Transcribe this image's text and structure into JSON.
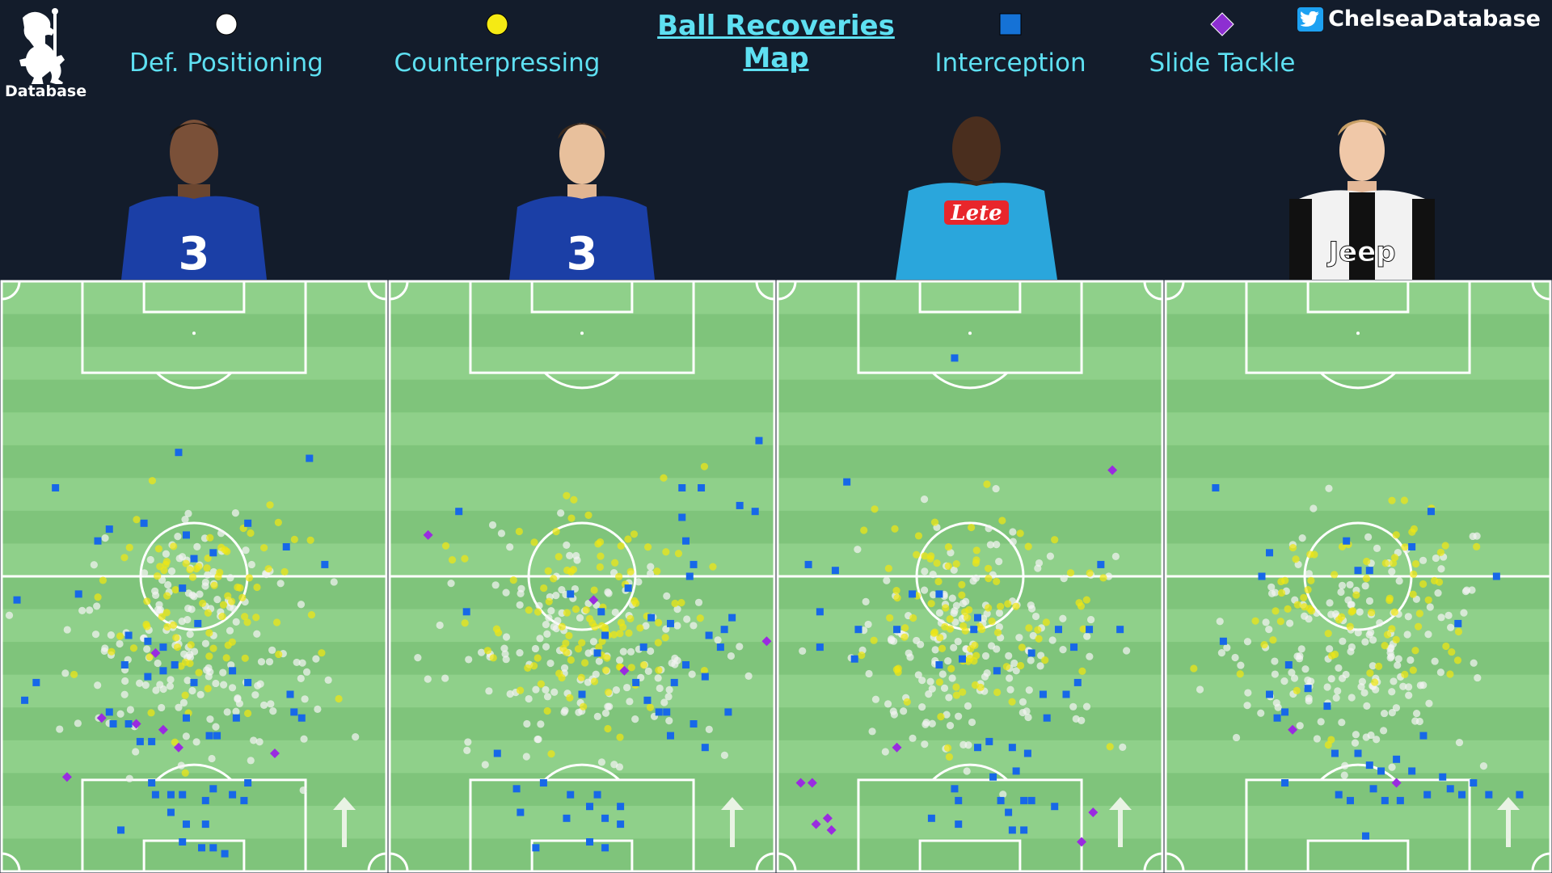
{
  "title": "Ball Recoveries Map",
  "handle": "ChelseaDatabase",
  "logo_text": "Database",
  "colors": {
    "background": "#131c2b",
    "accent": "#5ee0f2",
    "pitch_light": "#8fd08a",
    "pitch_dark": "#7fc47b",
    "def_positioning": "#f2f2f2",
    "counterpressing": "#f0e614",
    "interception": "#1768e8",
    "slide_tackle": "#9a2be0"
  },
  "legend": [
    {
      "key": "def_positioning",
      "label": "Def. Positioning",
      "marker": "circle",
      "color": "#ffffff"
    },
    {
      "key": "counterpressing",
      "label": "Counterpressing",
      "marker": "circle",
      "color": "#f5ea14"
    },
    {
      "key": "interception",
      "label": "Interception",
      "marker": "square",
      "color": "#1572d6"
    },
    {
      "key": "slide_tackle",
      "label": "Slide Tackle",
      "marker": "diamond",
      "color": "#8d2fd1"
    }
  ],
  "players": [
    {
      "kit": "chelsea",
      "jersey_color": "#1b3fa6",
      "shirt_text": "3"
    },
    {
      "kit": "chelsea",
      "jersey_color": "#1b3fa6",
      "shirt_text": "3"
    },
    {
      "kit": "napoli",
      "jersey_color": "#2aa6dc",
      "shirt_text": "Lete"
    },
    {
      "kit": "juventus",
      "jersey_color": "#f2f2f2",
      "shirt_text": "Jeep"
    }
  ],
  "chart_data": {
    "type": "scatter",
    "description_axes": "pitch coordinates 0-100 on both axes; y=0 own goal line, y=100 opponent goal line, attacking direction up",
    "xlim": [
      0,
      100
    ],
    "ylim": [
      0,
      100
    ],
    "panels": [
      {
        "index": 0,
        "slide_tackle": [
          [
            40,
            37
          ],
          [
            42,
            24
          ],
          [
            46,
            21
          ],
          [
            26,
            26
          ],
          [
            35,
            25
          ],
          [
            17,
            16
          ],
          [
            71,
            20
          ]
        ],
        "interception": [
          [
            46,
            71
          ],
          [
            80,
            70
          ],
          [
            14,
            65
          ],
          [
            64,
            59
          ],
          [
            37,
            59
          ],
          [
            28,
            58
          ],
          [
            48,
            57
          ],
          [
            25,
            56
          ],
          [
            84,
            52
          ],
          [
            55,
            54
          ],
          [
            74,
            55
          ],
          [
            50,
            53
          ],
          [
            47,
            48
          ],
          [
            51,
            42
          ],
          [
            33,
            40
          ],
          [
            38,
            39
          ],
          [
            42,
            38
          ],
          [
            45,
            35
          ],
          [
            42,
            34
          ],
          [
            60,
            34
          ],
          [
            9,
            32
          ],
          [
            6,
            29
          ],
          [
            32,
            35
          ],
          [
            38,
            33
          ],
          [
            50,
            32
          ],
          [
            64,
            32
          ],
          [
            75,
            30
          ],
          [
            76,
            27
          ],
          [
            78,
            26
          ],
          [
            28,
            27
          ],
          [
            29,
            25
          ],
          [
            33,
            25
          ],
          [
            48,
            26
          ],
          [
            61,
            26
          ],
          [
            39,
            22
          ],
          [
            54,
            23
          ],
          [
            56,
            23
          ],
          [
            36,
            22
          ],
          [
            39,
            15
          ],
          [
            40,
            13
          ],
          [
            44,
            13
          ],
          [
            47,
            13
          ],
          [
            53,
            12
          ],
          [
            55,
            14
          ],
          [
            60,
            13
          ],
          [
            63,
            12
          ],
          [
            64,
            15
          ],
          [
            44,
            10
          ],
          [
            48,
            8
          ],
          [
            53,
            8
          ],
          [
            31,
            7
          ],
          [
            47,
            5
          ],
          [
            52,
            4
          ],
          [
            55,
            4
          ],
          [
            58,
            3
          ],
          [
            4,
            46
          ],
          [
            20,
            47
          ]
        ],
        "seed": 11,
        "n_def": 170,
        "n_counter": 90
      },
      {
        "index": 1,
        "slide_tackle": [
          [
            10,
            57
          ],
          [
            53,
            46
          ],
          [
            61,
            34
          ],
          [
            98,
            39
          ]
        ],
        "interception": [
          [
            96,
            73
          ],
          [
            76,
            65
          ],
          [
            81,
            65
          ],
          [
            91,
            62
          ],
          [
            18,
            61
          ],
          [
            95,
            61
          ],
          [
            76,
            60
          ],
          [
            77,
            56
          ],
          [
            79,
            52
          ],
          [
            78,
            50
          ],
          [
            62,
            48
          ],
          [
            47,
            47
          ],
          [
            20,
            44
          ],
          [
            55,
            44
          ],
          [
            68,
            43
          ],
          [
            73,
            42
          ],
          [
            87,
            41
          ],
          [
            89,
            43
          ],
          [
            83,
            40
          ],
          [
            56,
            40
          ],
          [
            66,
            38
          ],
          [
            86,
            38
          ],
          [
            54,
            37
          ],
          [
            77,
            35
          ],
          [
            74,
            32
          ],
          [
            64,
            32
          ],
          [
            82,
            33
          ],
          [
            50,
            30
          ],
          [
            67,
            29
          ],
          [
            72,
            27
          ],
          [
            79,
            25
          ],
          [
            88,
            27
          ],
          [
            70,
            27
          ],
          [
            73,
            23
          ],
          [
            82,
            21
          ],
          [
            28,
            20
          ],
          [
            40,
            15
          ],
          [
            33,
            14
          ],
          [
            47,
            13
          ],
          [
            52,
            11
          ],
          [
            54,
            13
          ],
          [
            60,
            11
          ],
          [
            34,
            10
          ],
          [
            46,
            9
          ],
          [
            56,
            9
          ],
          [
            60,
            8
          ],
          [
            52,
            5
          ],
          [
            56,
            4
          ],
          [
            38,
            4
          ]
        ],
        "seed": 23,
        "n_def": 150,
        "n_counter": 110
      },
      {
        "index": 2,
        "slide_tackle": [
          [
            87,
            68
          ],
          [
            31,
            21
          ],
          [
            6,
            15
          ],
          [
            9,
            15
          ],
          [
            13,
            9
          ],
          [
            10,
            8
          ],
          [
            14,
            7
          ],
          [
            82,
            10
          ],
          [
            79,
            5
          ]
        ],
        "interception": [
          [
            46,
            87
          ],
          [
            18,
            66
          ],
          [
            8,
            52
          ],
          [
            15,
            51
          ],
          [
            35,
            47
          ],
          [
            42,
            47
          ],
          [
            84,
            52
          ],
          [
            11,
            44
          ],
          [
            21,
            41
          ],
          [
            31,
            41
          ],
          [
            51,
            41
          ],
          [
            52,
            43
          ],
          [
            73,
            41
          ],
          [
            81,
            41
          ],
          [
            89,
            41
          ],
          [
            77,
            38
          ],
          [
            66,
            37
          ],
          [
            11,
            38
          ],
          [
            20,
            36
          ],
          [
            42,
            35
          ],
          [
            48,
            36
          ],
          [
            57,
            34
          ],
          [
            69,
            30
          ],
          [
            75,
            30
          ],
          [
            70,
            26
          ],
          [
            78,
            32
          ],
          [
            55,
            22
          ],
          [
            61,
            21
          ],
          [
            52,
            21
          ],
          [
            65,
            20
          ],
          [
            62,
            17
          ],
          [
            56,
            16
          ],
          [
            46,
            14
          ],
          [
            47,
            12
          ],
          [
            58,
            12
          ],
          [
            64,
            12
          ],
          [
            66,
            12
          ],
          [
            60,
            10
          ],
          [
            72,
            11
          ],
          [
            40,
            9
          ],
          [
            47,
            8
          ],
          [
            61,
            7
          ],
          [
            64,
            7
          ]
        ],
        "seed": 37,
        "n_def": 160,
        "n_counter": 100
      },
      {
        "index": 3,
        "slide_tackle": [
          [
            33,
            24
          ],
          [
            60,
            15
          ]
        ],
        "interception": [
          [
            13,
            65
          ],
          [
            69,
            61
          ],
          [
            47,
            56
          ],
          [
            64,
            55
          ],
          [
            27,
            54
          ],
          [
            50,
            51
          ],
          [
            53,
            51
          ],
          [
            25,
            50
          ],
          [
            86,
            50
          ],
          [
            76,
            42
          ],
          [
            15,
            39
          ],
          [
            32,
            35
          ],
          [
            37,
            31
          ],
          [
            27,
            30
          ],
          [
            31,
            27
          ],
          [
            42,
            28
          ],
          [
            29,
            26
          ],
          [
            67,
            23
          ],
          [
            44,
            20
          ],
          [
            50,
            20
          ],
          [
            60,
            19
          ],
          [
            53,
            18
          ],
          [
            56,
            17
          ],
          [
            64,
            17
          ],
          [
            72,
            16
          ],
          [
            31,
            15
          ],
          [
            45,
            13
          ],
          [
            48,
            12
          ],
          [
            54,
            14
          ],
          [
            57,
            12
          ],
          [
            61,
            12
          ],
          [
            68,
            13
          ],
          [
            74,
            14
          ],
          [
            77,
            13
          ],
          [
            80,
            15
          ],
          [
            84,
            13
          ],
          [
            92,
            13
          ],
          [
            52,
            6
          ]
        ],
        "seed": 53,
        "n_def": 170,
        "n_counter": 80
      }
    ]
  }
}
